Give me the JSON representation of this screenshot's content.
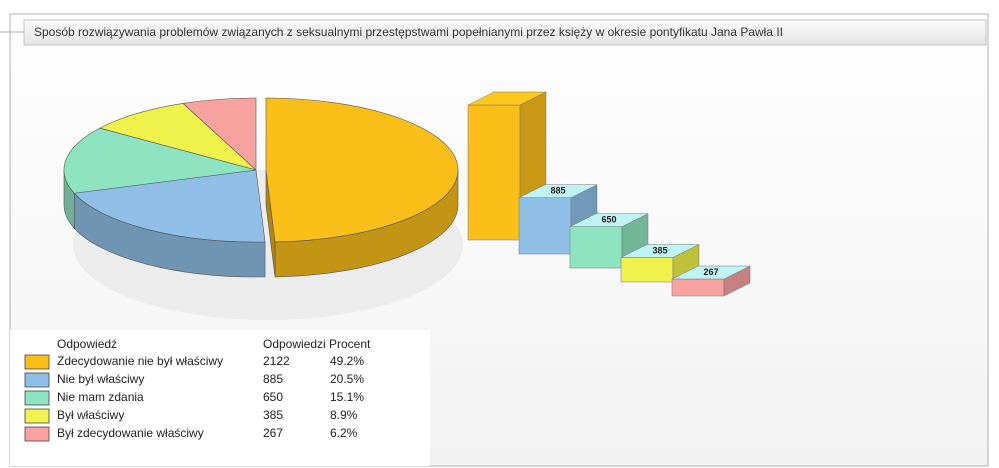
{
  "chart_data": {
    "type": "pie",
    "title": "Sposób rozwiązywania problemów związanych z seksualnymi przestępstwami popełnianymi przez księży w okresie pontyfikatu Jana Pawła II",
    "column_header": "Odpowiedź",
    "categories": [
      "Zdecydowanie nie był właściwy",
      "Nie był właściwy",
      "Nie mam zdania",
      "Był właściwy",
      "Był zdecydowanie właściwy"
    ],
    "colors": [
      "#fbbf1a",
      "#8fbfe6",
      "#8ee3c1",
      "#eef24a",
      "#f9a3a0"
    ],
    "series": [
      {
        "name": "Odpowiedzi",
        "values": [
          2122,
          885,
          650,
          385,
          267
        ]
      },
      {
        "name": "Procent",
        "values": [
          49.2,
          20.5,
          15.1,
          8.9,
          6.2
        ],
        "value_labels": [
          "49.2%",
          "20.5%",
          "15.1%",
          "8.9%",
          "6.2%"
        ]
      }
    ]
  }
}
